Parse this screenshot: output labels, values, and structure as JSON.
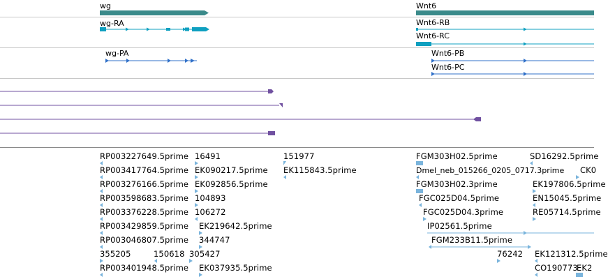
{
  "genes": {
    "wg": "wg",
    "wnt6": "Wnt6"
  },
  "transcripts_rna": {
    "wg_ra": "wg-RA",
    "wnt6_rb": "Wnt6-RB",
    "wnt6_rc": "Wnt6-RC"
  },
  "transcripts_protein": {
    "wg_pa": "wg-PA",
    "wnt6_pb": "Wnt6-PB",
    "wnt6_pc": "Wnt6-PC"
  },
  "colors": {
    "gene": "#3a8a8a",
    "rna": "#0fa0c0",
    "protein": "#3070c8",
    "purple": "#7050a0",
    "est": "#7ab4dc"
  },
  "ests": [
    "RP003227649.5prime",
    "16491",
    "151977",
    "FGM303H02.5prime",
    "SD16292.5prime",
    "RP003417764.5prime",
    "EK090217.5prime",
    "EK115843.5prime",
    "Dmel_neb_015266_0205_0717.3prime",
    "CK0",
    "RP003276166.5prime",
    "EK092856.5prime",
    "FGM303H02.3prime",
    "EK197806.5prime",
    "RP003598683.5prime",
    "104893",
    "FGC025D04.5prime",
    "EN15045.5prime",
    "RP003376228.5prime",
    "106272",
    "FGC025D04.3prime",
    "RE05714.5prime",
    "RP003429859.5prime",
    "EK219642.5prime",
    "IP02561.5prime",
    "RP003046807.5prime",
    "344747",
    "FGM233B11.5prime",
    "355205",
    "150618",
    "305427",
    "76242",
    "EK121312.5prime",
    "RP003401948.5prime",
    "EK037935.5prime",
    "CO190773",
    "EK2"
  ]
}
